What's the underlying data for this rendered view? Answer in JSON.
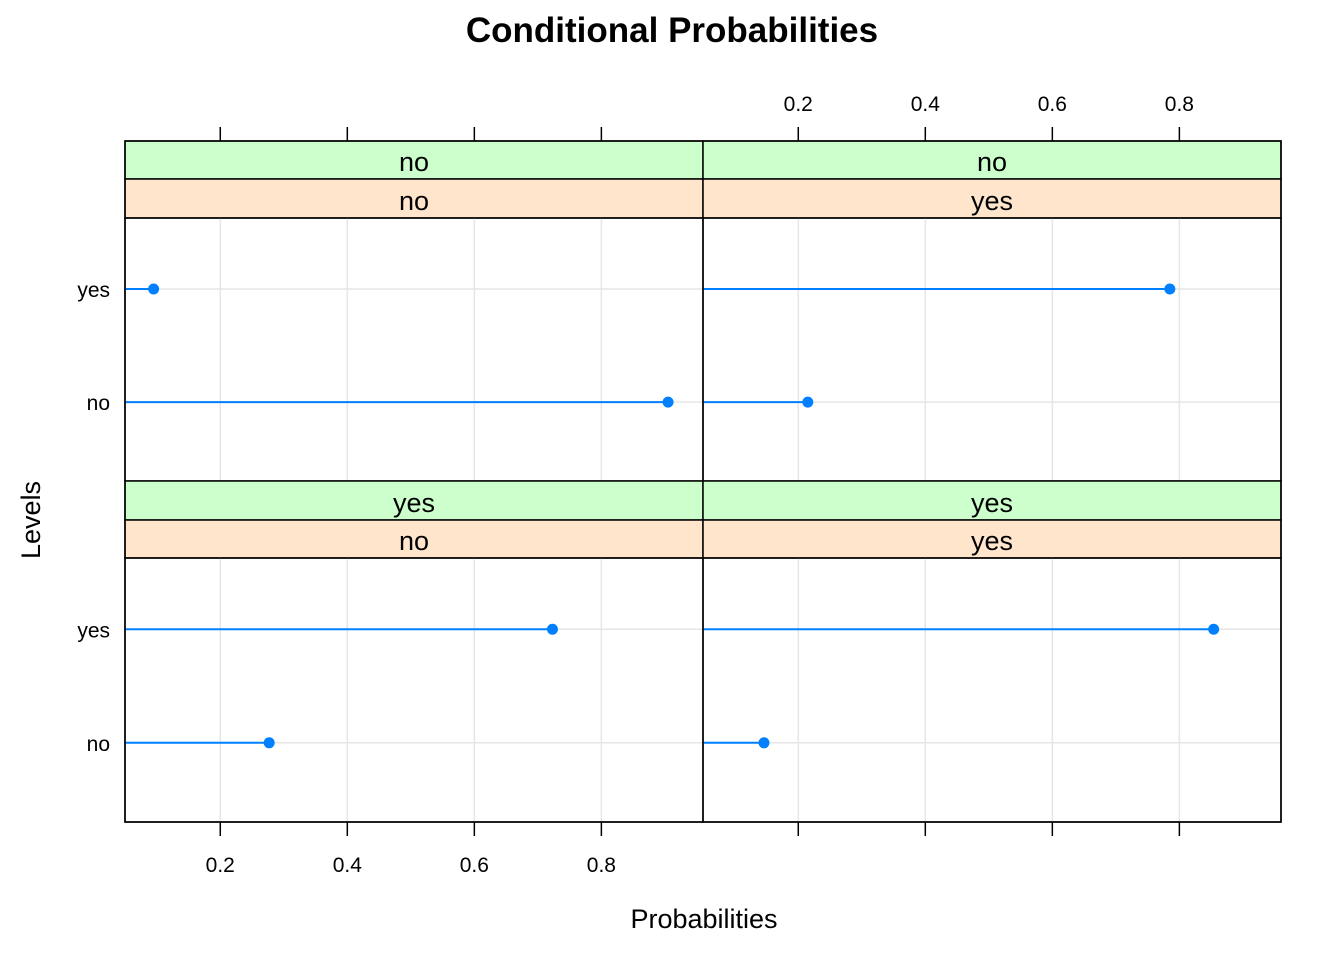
{
  "chart_data": {
    "type": "dotplot",
    "title": "Conditional Probabilities",
    "xlabel": "Probabilities",
    "ylabel": "Levels",
    "xlim": [
      0.05,
      0.96
    ],
    "x_ticks": [
      0.2,
      0.4,
      0.6,
      0.8
    ],
    "x_tick_labels": [
      "0.2",
      "0.4",
      "0.6",
      "0.8"
    ],
    "categories": [
      "no",
      "yes"
    ],
    "strip_colors": {
      "outer": "#ccffcc",
      "inner": "#ffe5cc"
    },
    "point_color": "#0080ff",
    "grid": true,
    "panels": [
      {
        "strip_outer": "no",
        "strip_inner": "no",
        "values": {
          "no": 0.905,
          "yes": 0.095
        }
      },
      {
        "strip_outer": "no",
        "strip_inner": "yes",
        "values": {
          "no": 0.215,
          "yes": 0.785
        }
      },
      {
        "strip_outer": "yes",
        "strip_inner": "no",
        "values": {
          "no": 0.277,
          "yes": 0.723
        }
      },
      {
        "strip_outer": "yes",
        "strip_inner": "yes",
        "values": {
          "no": 0.146,
          "yes": 0.854
        }
      }
    ]
  }
}
